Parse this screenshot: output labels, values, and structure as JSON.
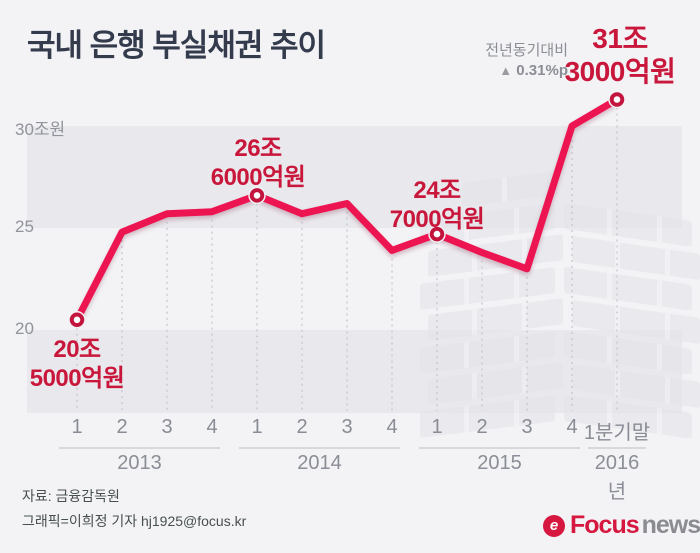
{
  "title": "국내 은행 부실채권 추이",
  "yoy_annotation": {
    "label": "전년동기대비",
    "icon": "▲",
    "value": "0.31%p"
  },
  "chart_data": {
    "type": "line",
    "title": "국내 은행 부실채권 추이",
    "unit": "조원",
    "x_tick_labels": [
      "1",
      "2",
      "3",
      "4",
      "1",
      "2",
      "3",
      "4",
      "1",
      "2",
      "3",
      "4",
      "1분기말"
    ],
    "year_groups": [
      {
        "label": "2013",
        "tick_start": 0,
        "tick_end": 3
      },
      {
        "label": "2014",
        "tick_start": 4,
        "tick_end": 7
      },
      {
        "label": "2015",
        "tick_start": 8,
        "tick_end": 11
      },
      {
        "label": "2016년",
        "tick_start": 12,
        "tick_end": 12
      }
    ],
    "values": [
      20.5,
      24.8,
      25.7,
      25.8,
      26.6,
      25.7,
      26.2,
      23.9,
      24.7,
      23.8,
      23.0,
      30.0,
      31.3
    ],
    "marker_indices": [
      0,
      4,
      8,
      12
    ],
    "yticks": [
      {
        "value": 30,
        "label": "30조원"
      },
      {
        "value": 25,
        "label": "25"
      },
      {
        "value": 20,
        "label": "20"
      }
    ],
    "ylim": [
      16,
      33.5
    ],
    "grid": "horizontal-bands",
    "legend": "none",
    "point_labels": [
      {
        "index": 0,
        "line1": "20조",
        "line2": "5000억원",
        "placement": "below"
      },
      {
        "index": 4,
        "line1": "26조",
        "line2": "6000억원",
        "placement": "above"
      },
      {
        "index": 8,
        "line1": "24조",
        "line2": "7000억원",
        "placement": "above"
      },
      {
        "index": 12,
        "line1": "31조",
        "line2": "3000억원",
        "placement": "above"
      }
    ]
  },
  "footer": {
    "source": "자료: 금융감독원",
    "credit": "그래픽=이희정 기자 hj1925@focus.kr"
  },
  "brand": {
    "icon_letter": "e",
    "name_primary": "Focus",
    "name_secondary": "news"
  },
  "colors": {
    "background": "#f3f3f6",
    "band": "#e9e9ed",
    "line": "#ed1551",
    "marker_ring": "#c2143c",
    "label_red": "#c9173c",
    "title_text": "#333b4d",
    "muted_text": "#8b8e96",
    "guide": "#c6c6cd"
  }
}
